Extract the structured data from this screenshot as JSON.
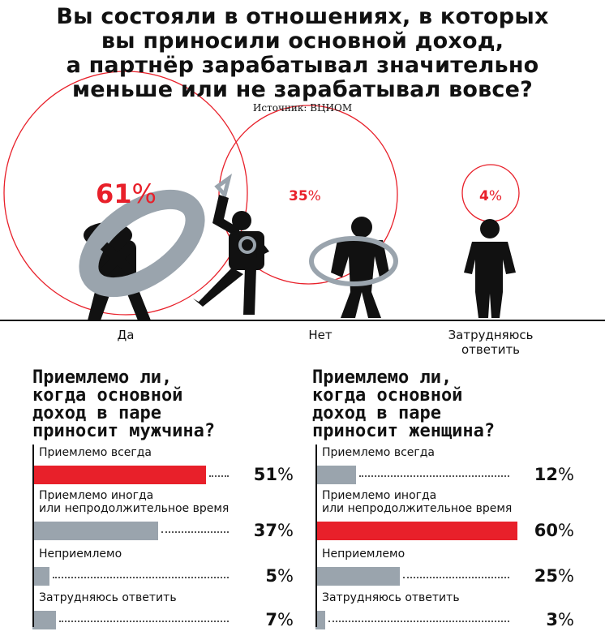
{
  "title": {
    "line1": "Вы состояли в отношениях, в которых",
    "line2": "вы приносили основной доход,",
    "line3": "а партнёр зарабатывал значительно",
    "line4": "меньше или не зарабатывал вовсе?"
  },
  "source": "Источник: ВЦИОМ",
  "colors": {
    "accent": "#e8202a",
    "gray": "#9aa4ad",
    "figure": "#111111",
    "ring": "#8f9aa3"
  },
  "chart_data": [
    {
      "type": "bubble",
      "categories": [
        "Да",
        "Нет",
        "Затрудняюсь ответить"
      ],
      "values": [
        61,
        35,
        4
      ],
      "labels": [
        "61%",
        "35%",
        "4%"
      ]
    },
    {
      "type": "bar",
      "title": "Приемлемо ли, когда основной доход в паре приносит мужчина?",
      "categories": [
        "Приемлемо всегда",
        "Приемлемо иногда или непродолжительное время",
        "Неприемлемо",
        "Затрудняюсь ответить"
      ],
      "values": [
        51,
        37,
        5,
        7
      ],
      "highlight": 0
    },
    {
      "type": "bar",
      "title": "Приемлемо ли, когда основной доход в паре приносит женщина?",
      "categories": [
        "Приемлемо всегда",
        "Приемлемо иногда или непродолжительное время",
        "Неприемлемо",
        "Затрудняюсь ответить"
      ],
      "values": [
        12,
        60,
        25,
        3
      ],
      "highlight": 1
    }
  ],
  "bubbles": [
    {
      "label": "Да",
      "value_text": "61",
      "pct": "%"
    },
    {
      "label": "Нет",
      "value_text": "35",
      "pct": "%"
    },
    {
      "label_line1": "Затрудняюсь",
      "label_line2": "ответить",
      "value_text": "4",
      "pct": "%"
    }
  ],
  "left_panel": {
    "title_lines": [
      "Приемлемо ли,",
      "когда основной",
      "доход в паре",
      "приносит мужчина?"
    ],
    "rows": [
      {
        "label_lines": [
          "Приемлемо всегда"
        ],
        "value": "51",
        "unit": "%"
      },
      {
        "label_lines": [
          "Приемлемо иногда",
          "или непродолжительное время"
        ],
        "value": "37",
        "unit": "%"
      },
      {
        "label_lines": [
          "Неприемлемо"
        ],
        "value": "5",
        "unit": "%"
      },
      {
        "label_lines": [
          "Затрудняюсь ответить"
        ],
        "value": "7",
        "unit": "%"
      }
    ]
  },
  "right_panel": {
    "title_lines": [
      "Приемлемо ли,",
      "когда основной",
      "доход в паре",
      "приносит женщина?"
    ],
    "rows": [
      {
        "label_lines": [
          "Приемлемо всегда"
        ],
        "value": "12",
        "unit": "%"
      },
      {
        "label_lines": [
          "Приемлемо иногда",
          "или непродолжительное время"
        ],
        "value": "60",
        "unit": "%"
      },
      {
        "label_lines": [
          "Неприемлемо"
        ],
        "value": "25",
        "unit": "%"
      },
      {
        "label_lines": [
          "Затрудняюсь ответить"
        ],
        "value": "3",
        "unit": "%"
      }
    ]
  }
}
